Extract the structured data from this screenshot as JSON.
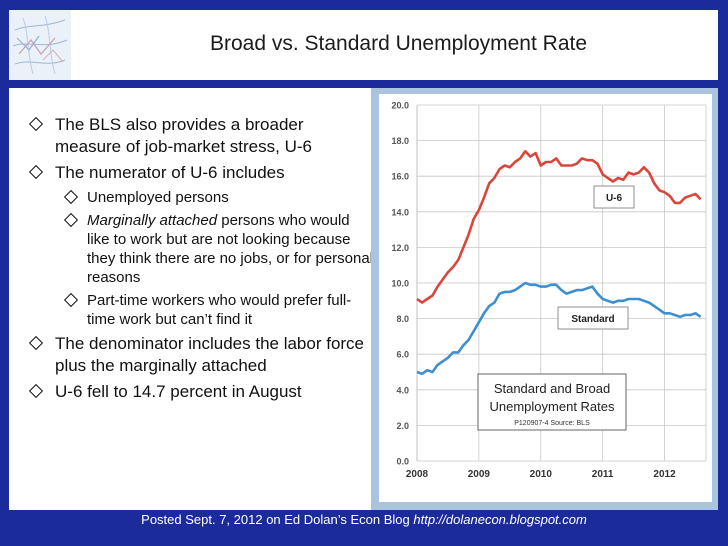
{
  "slide": {
    "title": "Broad vs. Standard Unemployment Rate",
    "bullets": {
      "b1": "The BLS also provides a broader measure of job-market stress, U-6",
      "b2": "The numerator of U-6 includes",
      "b2a": "Unemployed persons",
      "b2b_italic": "Marginally attached",
      "b2b_rest": " persons who would like to work but are not looking because they think there are no jobs, or for personal reasons",
      "b2c": "Part-time workers who would prefer full-time work but can’t find it",
      "b3": "The denominator includes the labor force plus the marginally attached",
      "b4": "U-6 fell to 14.7 percent in August"
    },
    "footer": {
      "text": "Posted Sept. 7, 2012 on Ed Dolan’s Econ Blog ",
      "url": "http://dolanecon.blogspot.com"
    }
  },
  "colors": {
    "slide_bg": "#1c2b9a",
    "u6_line": "#d9463b",
    "standard_line": "#3d8fd0",
    "chart_border": "#aac3de"
  },
  "chart_data": {
    "type": "line",
    "x_ticks": [
      "2008",
      "2009",
      "2010",
      "2011",
      "2012"
    ],
    "x_range": [
      2008.0,
      2012.67
    ],
    "y_ticks": [
      "0.0",
      "2.0",
      "4.0",
      "6.0",
      "8.0",
      "10.0",
      "12.0",
      "14.0",
      "16.0",
      "18.0",
      "20.0"
    ],
    "ylim": [
      0,
      20
    ],
    "grid": true,
    "labels": {
      "u6": "U-6",
      "standard": "Standard",
      "caption_line1": "Standard and Broad",
      "caption_line2": "Unemployment Rates",
      "caption_source": "P120907-4 Source: BLS"
    },
    "series": [
      {
        "name": "U-6",
        "x": [
          2008.0,
          2008.083,
          2008.167,
          2008.25,
          2008.333,
          2008.417,
          2008.5,
          2008.583,
          2008.667,
          2008.75,
          2008.833,
          2008.917,
          2009.0,
          2009.083,
          2009.167,
          2009.25,
          2009.333,
          2009.417,
          2009.5,
          2009.583,
          2009.667,
          2009.75,
          2009.833,
          2009.917,
          2010.0,
          2010.083,
          2010.167,
          2010.25,
          2010.333,
          2010.417,
          2010.5,
          2010.583,
          2010.667,
          2010.75,
          2010.833,
          2010.917,
          2011.0,
          2011.083,
          2011.167,
          2011.25,
          2011.333,
          2011.417,
          2011.5,
          2011.583,
          2011.667,
          2011.75,
          2011.833,
          2011.917,
          2012.0,
          2012.083,
          2012.167,
          2012.25,
          2012.333,
          2012.417,
          2012.5,
          2012.583
        ],
        "values": [
          9.1,
          8.9,
          9.1,
          9.3,
          9.8,
          10.2,
          10.6,
          10.9,
          11.3,
          12.0,
          12.7,
          13.6,
          14.1,
          14.8,
          15.6,
          15.9,
          16.4,
          16.6,
          16.5,
          16.8,
          17.0,
          17.4,
          17.1,
          17.3,
          16.6,
          16.8,
          16.8,
          17.0,
          16.6,
          16.6,
          16.6,
          16.7,
          17.0,
          16.9,
          16.9,
          16.7,
          16.1,
          15.9,
          15.7,
          15.9,
          15.8,
          16.2,
          16.1,
          16.2,
          16.5,
          16.2,
          15.6,
          15.2,
          15.1,
          14.9,
          14.5,
          14.5,
          14.8,
          14.9,
          15.0,
          14.7
        ]
      },
      {
        "name": "Standard",
        "x": [
          2008.0,
          2008.083,
          2008.167,
          2008.25,
          2008.333,
          2008.417,
          2008.5,
          2008.583,
          2008.667,
          2008.75,
          2008.833,
          2008.917,
          2009.0,
          2009.083,
          2009.167,
          2009.25,
          2009.333,
          2009.417,
          2009.5,
          2009.583,
          2009.667,
          2009.75,
          2009.833,
          2009.917,
          2010.0,
          2010.083,
          2010.167,
          2010.25,
          2010.333,
          2010.417,
          2010.5,
          2010.583,
          2010.667,
          2010.75,
          2010.833,
          2010.917,
          2011.0,
          2011.083,
          2011.167,
          2011.25,
          2011.333,
          2011.417,
          2011.5,
          2011.583,
          2011.667,
          2011.75,
          2011.833,
          2011.917,
          2012.0,
          2012.083,
          2012.167,
          2012.25,
          2012.333,
          2012.417,
          2012.5,
          2012.583
        ],
        "values": [
          5.0,
          4.9,
          5.1,
          5.0,
          5.4,
          5.6,
          5.8,
          6.1,
          6.1,
          6.5,
          6.8,
          7.3,
          7.8,
          8.3,
          8.7,
          8.9,
          9.4,
          9.5,
          9.5,
          9.6,
          9.8,
          10.0,
          9.9,
          9.9,
          9.8,
          9.8,
          9.9,
          9.9,
          9.6,
          9.4,
          9.5,
          9.6,
          9.6,
          9.7,
          9.8,
          9.4,
          9.1,
          9.0,
          8.9,
          9.0,
          9.0,
          9.1,
          9.1,
          9.1,
          9.0,
          8.9,
          8.7,
          8.5,
          8.3,
          8.3,
          8.2,
          8.1,
          8.2,
          8.2,
          8.3,
          8.1
        ]
      }
    ]
  }
}
